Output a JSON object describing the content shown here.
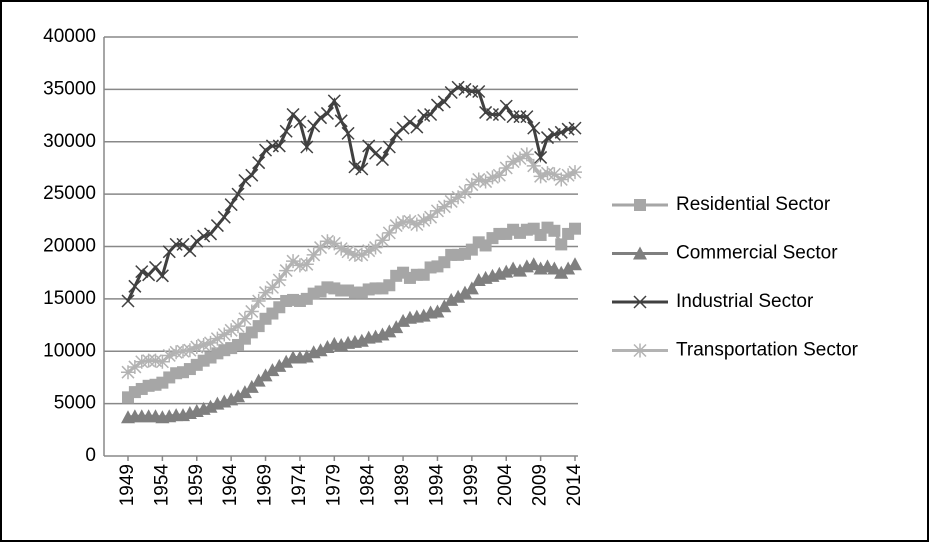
{
  "chart_data": {
    "type": "line",
    "x": [
      1949,
      1950,
      1951,
      1952,
      1953,
      1954,
      1955,
      1956,
      1957,
      1958,
      1959,
      1960,
      1961,
      1962,
      1963,
      1964,
      1965,
      1966,
      1967,
      1968,
      1969,
      1970,
      1971,
      1972,
      1973,
      1974,
      1975,
      1976,
      1977,
      1978,
      1979,
      1980,
      1981,
      1982,
      1983,
      1984,
      1985,
      1986,
      1987,
      1988,
      1989,
      1990,
      1991,
      1992,
      1993,
      1994,
      1995,
      1996,
      1997,
      1998,
      1999,
      2000,
      2001,
      2002,
      2003,
      2004,
      2005,
      2006,
      2007,
      2008,
      2009,
      2010,
      2011,
      2012,
      2013,
      2014
    ],
    "xlim": [
      1949,
      2014
    ],
    "xticks": [
      1949,
      1954,
      1959,
      1964,
      1969,
      1974,
      1979,
      1984,
      1989,
      1994,
      1999,
      2004,
      2009,
      2014
    ],
    "ylim": [
      0,
      40000
    ],
    "yticks": [
      0,
      5000,
      10000,
      15000,
      20000,
      25000,
      30000,
      35000,
      40000
    ],
    "grid": true,
    "legend": "right",
    "series": [
      {
        "name": "Residential Sector",
        "color": "#a6a6a6",
        "marker": "square",
        "values": [
          5600,
          6100,
          6400,
          6700,
          6800,
          7000,
          7500,
          7900,
          8000,
          8300,
          8700,
          9100,
          9400,
          9800,
          10100,
          10300,
          10600,
          11200,
          11800,
          12400,
          13100,
          13600,
          14200,
          14800,
          14900,
          14800,
          15000,
          15500,
          15700,
          16100,
          16000,
          15800,
          15800,
          15600,
          15600,
          15900,
          16000,
          16000,
          16300,
          17200,
          17500,
          17000,
          17300,
          17300,
          18000,
          18100,
          18500,
          19200,
          19200,
          19300,
          19700,
          20400,
          20100,
          20800,
          21200,
          21200,
          21600,
          21300,
          21600,
          21700,
          21100,
          21800,
          21500,
          20200,
          21200,
          21700
        ]
      },
      {
        "name": "Commercial Sector",
        "color": "#7f7f7f",
        "marker": "triangle",
        "values": [
          3700,
          3800,
          3800,
          3800,
          3800,
          3700,
          3800,
          3900,
          3900,
          4100,
          4300,
          4500,
          4700,
          5000,
          5200,
          5400,
          5700,
          6100,
          6600,
          7200,
          7700,
          8200,
          8600,
          9000,
          9400,
          9400,
          9500,
          9900,
          10100,
          10400,
          10700,
          10600,
          10800,
          10900,
          11000,
          11300,
          11400,
          11600,
          11900,
          12300,
          12900,
          13200,
          13300,
          13400,
          13700,
          13800,
          14300,
          14900,
          15200,
          15600,
          16000,
          16800,
          17000,
          17200,
          17400,
          17600,
          17900,
          17700,
          18100,
          18300,
          17900,
          18100,
          17900,
          17500,
          17900,
          18300
        ]
      },
      {
        "name": "Industrial Sector",
        "color": "#404040",
        "marker": "x",
        "values": [
          14800,
          16200,
          17600,
          17300,
          18000,
          17200,
          19500,
          20200,
          20200,
          19600,
          20500,
          21000,
          21200,
          22000,
          22800,
          24000,
          25000,
          26300,
          26800,
          28000,
          29200,
          29600,
          29600,
          31000,
          32600,
          31900,
          29500,
          31500,
          32300,
          32700,
          33900,
          32000,
          30800,
          27600,
          27400,
          29600,
          28900,
          28300,
          29500,
          30700,
          31300,
          31900,
          31400,
          32500,
          32600,
          33500,
          33800,
          34700,
          35200,
          35000,
          34800,
          34800,
          32800,
          32600,
          32600,
          33400,
          32400,
          32400,
          32400,
          31300,
          28500,
          30400,
          30700,
          30900,
          31200,
          31300
        ]
      },
      {
        "name": "Transportation Sector",
        "color": "#b3b3b3",
        "marker": "asterisk",
        "values": [
          8000,
          8500,
          9000,
          9100,
          9100,
          9000,
          9600,
          9900,
          10000,
          10100,
          10400,
          10600,
          10800,
          11200,
          11600,
          12000,
          12400,
          13100,
          13800,
          14800,
          15600,
          16100,
          16800,
          17700,
          18600,
          18200,
          18300,
          19200,
          19900,
          20500,
          20300,
          19800,
          19500,
          19200,
          19200,
          19600,
          19900,
          20600,
          21300,
          22000,
          22300,
          22400,
          22100,
          22500,
          22800,
          23400,
          23800,
          24300,
          24700,
          25200,
          25900,
          26400,
          26200,
          26600,
          26800,
          27500,
          28100,
          28400,
          28800,
          27700,
          26700,
          27000,
          26900,
          26400,
          26800,
          27100
        ]
      }
    ]
  }
}
